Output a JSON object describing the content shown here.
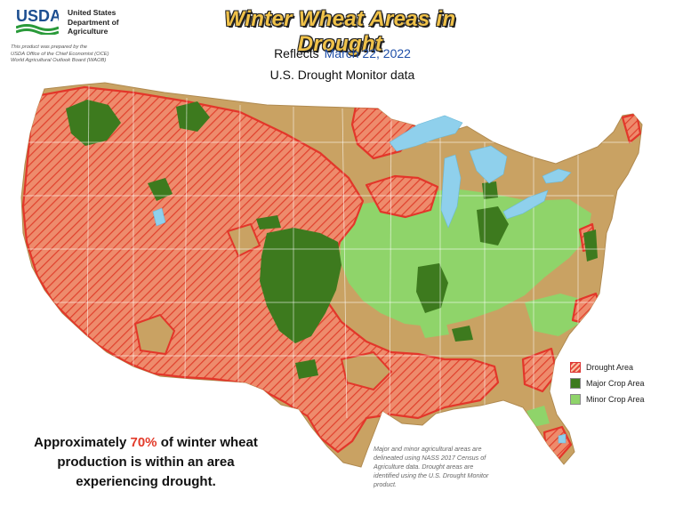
{
  "header": {
    "logo_text": "USDA",
    "agency_lines": [
      "United States",
      "Department of",
      "Agriculture"
    ],
    "disclaimer_lines": [
      "This product was prepared by the",
      "USDA Office of the Chief Economist (OCE)",
      "World Agricultural Outlook Board (WAOB)"
    ],
    "title": "Winter Wheat Areas in Drought",
    "subtitle_prefix": "Reflects",
    "subtitle_date": "March 22, 2022",
    "data_source": "U.S. Drought Monitor data"
  },
  "legend": {
    "items": [
      {
        "label": "Drought Area",
        "color": "#e44a3a"
      },
      {
        "label": "Major Crop Area",
        "color": "#3d7a1e"
      },
      {
        "label": "Minor Crop Area",
        "color": "#8fd46a"
      }
    ]
  },
  "summary": {
    "before": "Approximately",
    "percent": "70%",
    "line1_after": "of winter wheat",
    "line2": "production is within an area",
    "line3": "experiencing drought."
  },
  "notes": {
    "lines": [
      "Major and minor agricultural areas are",
      "delineated using NASS 2017 Census of",
      "Agriculture data.  Drought areas are",
      "identified using the U.S. Drought Monitor",
      "product."
    ]
  },
  "colors": {
    "land": "#c9a263",
    "drought_fill": "#e87758",
    "drought_outline": "#e3362a",
    "major_crop": "#3d7a1e",
    "minor_crop": "#8fd46a",
    "water": "#8fd0ec",
    "title_fill": "#f0c24a",
    "date_blue": "#1f4fa8",
    "percent_red": "#e23b2a"
  }
}
